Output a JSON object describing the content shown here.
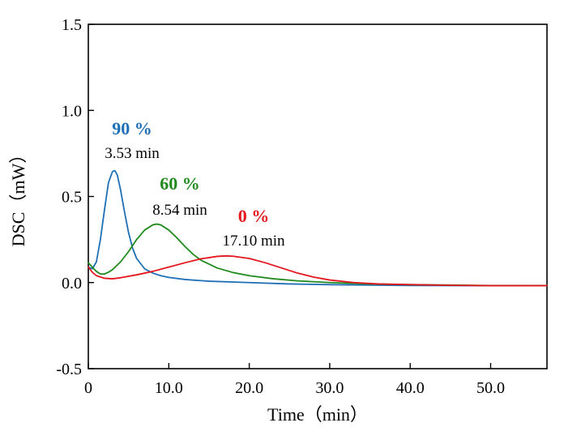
{
  "chart_data": {
    "type": "line",
    "title": "",
    "xlabel": "Time（min）",
    "ylabel": "DSC（mW）",
    "xlim": [
      0,
      57
    ],
    "ylim": [
      -0.5,
      1.5
    ],
    "x_ticks": [
      0,
      10,
      20,
      30,
      40,
      50
    ],
    "x_tick_labels": [
      "0",
      "10.0",
      "20.0",
      "30.0",
      "40.0",
      "50.0"
    ],
    "y_ticks": [
      -0.5,
      0.0,
      0.5,
      1.0,
      1.5
    ],
    "y_tick_labels": [
      "-0.5",
      "0.0",
      "0.5",
      "1.0",
      "1.5"
    ],
    "series": [
      {
        "name": "90 %",
        "color": "#1f6fb5",
        "peak_time_label": "3.53 min",
        "x": [
          0,
          0.5,
          1,
          1.5,
          2,
          2.5,
          3,
          3.3,
          3.6,
          4,
          4.5,
          5,
          5.5,
          6,
          7,
          8,
          9,
          10,
          12,
          15,
          20,
          25,
          30,
          40,
          50,
          57
        ],
        "y": [
          0.09,
          0.08,
          0.12,
          0.25,
          0.42,
          0.58,
          0.645,
          0.65,
          0.625,
          0.54,
          0.41,
          0.29,
          0.2,
          0.14,
          0.08,
          0.055,
          0.04,
          0.03,
          0.018,
          0.008,
          0.0,
          -0.008,
          -0.012,
          -0.017,
          -0.018,
          -0.018
        ]
      },
      {
        "name": "60 %",
        "color": "#218a1f",
        "peak_time_label": "8.54 min",
        "x": [
          0,
          0.5,
          1,
          1.5,
          2,
          2.5,
          3,
          4,
          5,
          6,
          7,
          8,
          8.5,
          9,
          10,
          11,
          12,
          13,
          14,
          16,
          18,
          20,
          23,
          26,
          30,
          35,
          40,
          50,
          57
        ],
        "y": [
          0.115,
          0.09,
          0.065,
          0.05,
          0.05,
          0.06,
          0.075,
          0.12,
          0.18,
          0.25,
          0.305,
          0.335,
          0.34,
          0.335,
          0.305,
          0.26,
          0.21,
          0.165,
          0.13,
          0.085,
          0.058,
          0.04,
          0.022,
          0.01,
          0.0,
          -0.008,
          -0.012,
          -0.017,
          -0.018
        ]
      },
      {
        "name": "0 %",
        "color": "#e3161e",
        "peak_time_label": "17.10 min",
        "x": [
          0,
          0.5,
          1,
          2,
          3,
          4,
          6,
          8,
          10,
          12,
          14,
          16,
          17.1,
          18,
          20,
          22,
          24,
          26,
          28,
          30,
          33,
          36,
          40,
          45,
          50,
          57
        ],
        "y": [
          0.09,
          0.06,
          0.04,
          0.025,
          0.022,
          0.028,
          0.045,
          0.065,
          0.09,
          0.115,
          0.138,
          0.152,
          0.155,
          0.153,
          0.14,
          0.115,
          0.085,
          0.055,
          0.032,
          0.015,
          0.0,
          -0.008,
          -0.012,
          -0.016,
          -0.018,
          -0.018
        ]
      }
    ]
  }
}
